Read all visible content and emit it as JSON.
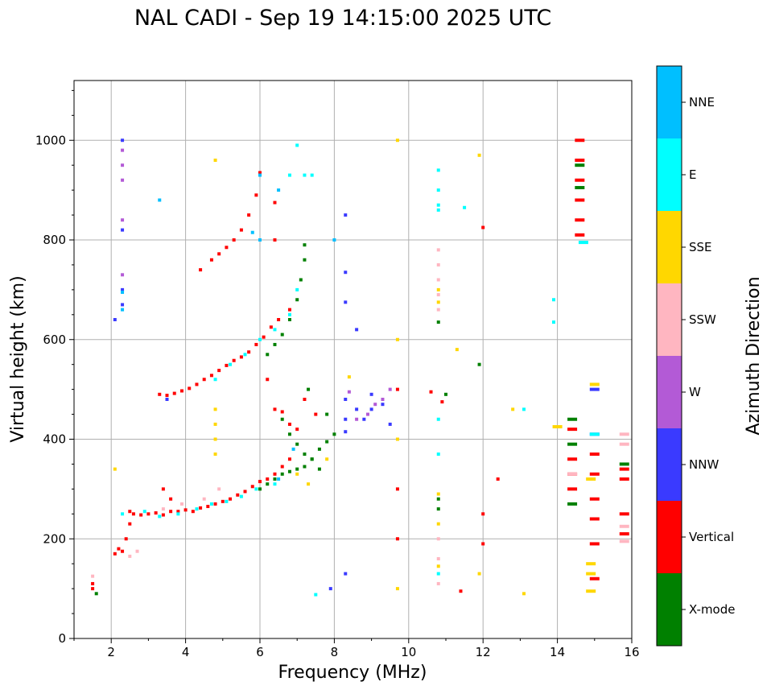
{
  "chart_data": {
    "type": "scatter",
    "title": "NAL CADI - Sep 19 14:15:00 2025 UTC",
    "xlabel": "Frequency (MHz)",
    "ylabel": "Virtual height (km)",
    "xlim": [
      1,
      16
    ],
    "ylim": [
      0,
      1120
    ],
    "xticks": [
      2,
      4,
      6,
      8,
      10,
      12,
      14,
      16
    ],
    "yticks": [
      0,
      200,
      400,
      600,
      800,
      1000
    ],
    "grid": true,
    "colorbar": {
      "title": "Azimuth Direction",
      "categories": [
        {
          "name": "X-mode",
          "color": "#008000"
        },
        {
          "name": "Vertical",
          "color": "#ff0000"
        },
        {
          "name": "NNW",
          "color": "#3a3aff"
        },
        {
          "name": "W",
          "color": "#b35ad6"
        },
        {
          "name": "SSW",
          "color": "#ffb6c1"
        },
        {
          "name": "SSE",
          "color": "#ffd700"
        },
        {
          "name": "E",
          "color": "#00ffff"
        },
        {
          "name": "NNE",
          "color": "#00bfff"
        }
      ]
    },
    "series": [
      {
        "name": "Vertical",
        "points": [
          [
            1.5,
            110
          ],
          [
            1.5,
            100
          ],
          [
            2.1,
            170
          ],
          [
            2.2,
            180
          ],
          [
            2.3,
            175
          ],
          [
            2.4,
            200
          ],
          [
            2.5,
            230
          ],
          [
            2.5,
            255
          ],
          [
            2.6,
            250
          ],
          [
            2.8,
            248
          ],
          [
            3.0,
            250
          ],
          [
            3.2,
            252
          ],
          [
            3.4,
            248
          ],
          [
            3.6,
            255
          ],
          [
            3.8,
            255
          ],
          [
            4.0,
            258
          ],
          [
            4.2,
            255
          ],
          [
            4.4,
            262
          ],
          [
            4.6,
            265
          ],
          [
            4.8,
            270
          ],
          [
            5.0,
            275
          ],
          [
            5.2,
            280
          ],
          [
            5.4,
            288
          ],
          [
            5.6,
            295
          ],
          [
            5.8,
            305
          ],
          [
            6.0,
            315
          ],
          [
            6.2,
            320
          ],
          [
            6.4,
            330
          ],
          [
            6.6,
            345
          ],
          [
            6.8,
            360
          ],
          [
            3.3,
            490
          ],
          [
            3.5,
            488
          ],
          [
            3.7,
            492
          ],
          [
            3.9,
            497
          ],
          [
            4.1,
            502
          ],
          [
            4.3,
            510
          ],
          [
            4.5,
            520
          ],
          [
            4.7,
            528
          ],
          [
            4.9,
            538
          ],
          [
            5.1,
            548
          ],
          [
            5.3,
            558
          ],
          [
            5.5,
            565
          ],
          [
            5.7,
            575
          ],
          [
            5.9,
            590
          ],
          [
            6.1,
            605
          ],
          [
            6.3,
            625
          ],
          [
            6.5,
            640
          ],
          [
            6.8,
            660
          ],
          [
            6.4,
            800
          ],
          [
            6.4,
            460
          ],
          [
            4.4,
            740
          ],
          [
            4.7,
            760
          ],
          [
            4.9,
            772
          ],
          [
            5.1,
            785
          ],
          [
            5.3,
            800
          ],
          [
            5.5,
            820
          ],
          [
            5.7,
            850
          ],
          [
            5.9,
            890
          ],
          [
            6.0,
            935
          ],
          [
            6.4,
            875
          ],
          [
            3.4,
            300
          ],
          [
            3.6,
            280
          ],
          [
            6.2,
            520
          ],
          [
            6.6,
            455
          ],
          [
            6.8,
            430
          ],
          [
            7.0,
            420
          ],
          [
            7.2,
            480
          ],
          [
            7.5,
            450
          ],
          [
            12.0,
            250
          ],
          [
            12.0,
            190
          ],
          [
            12.4,
            320
          ],
          [
            12.0,
            825
          ],
          [
            11.4,
            95
          ],
          [
            10.6,
            495
          ],
          [
            10.9,
            475
          ],
          [
            14.6,
            1000
          ],
          [
            14.6,
            960
          ],
          [
            14.6,
            920
          ],
          [
            14.6,
            880
          ],
          [
            14.6,
            840
          ],
          [
            14.6,
            810
          ],
          [
            14.4,
            420
          ],
          [
            14.4,
            360
          ],
          [
            14.4,
            330
          ],
          [
            14.4,
            300
          ],
          [
            15.0,
            370
          ],
          [
            15.0,
            330
          ],
          [
            15.0,
            280
          ],
          [
            15.0,
            240
          ],
          [
            15.0,
            190
          ],
          [
            15.0,
            120
          ],
          [
            15.8,
            340
          ],
          [
            15.8,
            320
          ],
          [
            15.8,
            250
          ],
          [
            15.8,
            210
          ],
          [
            9.7,
            500
          ],
          [
            9.7,
            300
          ],
          [
            9.7,
            200
          ]
        ]
      },
      {
        "name": "X-mode",
        "points": [
          [
            1.6,
            90
          ],
          [
            6.0,
            300
          ],
          [
            6.2,
            310
          ],
          [
            6.4,
            320
          ],
          [
            6.6,
            330
          ],
          [
            6.8,
            335
          ],
          [
            7.0,
            340
          ],
          [
            7.2,
            345
          ],
          [
            7.4,
            360
          ],
          [
            7.6,
            380
          ],
          [
            7.8,
            395
          ],
          [
            6.2,
            570
          ],
          [
            6.4,
            590
          ],
          [
            6.6,
            610
          ],
          [
            6.8,
            640
          ],
          [
            7.0,
            680
          ],
          [
            7.1,
            720
          ],
          [
            7.2,
            760
          ],
          [
            7.2,
            790
          ],
          [
            6.6,
            440
          ],
          [
            6.8,
            410
          ],
          [
            7.0,
            390
          ],
          [
            7.2,
            370
          ],
          [
            7.4,
            360
          ],
          [
            7.6,
            340
          ],
          [
            7.8,
            450
          ],
          [
            8.0,
            410
          ],
          [
            10.8,
            635
          ],
          [
            10.8,
            280
          ],
          [
            10.8,
            260
          ],
          [
            11.0,
            490
          ],
          [
            11.9,
            550
          ],
          [
            14.4,
            440
          ],
          [
            14.4,
            390
          ],
          [
            14.4,
            270
          ],
          [
            14.6,
            950
          ],
          [
            14.6,
            905
          ],
          [
            15.8,
            350
          ],
          [
            7.3,
            500
          ]
        ]
      },
      {
        "name": "NNW",
        "points": [
          [
            2.3,
            1000
          ],
          [
            2.3,
            820
          ],
          [
            2.3,
            700
          ],
          [
            2.3,
            670
          ],
          [
            2.1,
            640
          ],
          [
            8.3,
            480
          ],
          [
            8.3,
            440
          ],
          [
            8.3,
            415
          ],
          [
            8.6,
            460
          ],
          [
            8.8,
            440
          ],
          [
            9.0,
            490
          ],
          [
            9.0,
            460
          ],
          [
            9.3,
            470
          ],
          [
            9.5,
            430
          ],
          [
            8.3,
            850
          ],
          [
            8.3,
            735
          ],
          [
            8.3,
            675
          ],
          [
            8.6,
            620
          ],
          [
            8.3,
            130
          ],
          [
            7.9,
            100
          ],
          [
            15.0,
            500
          ],
          [
            15.0,
            410
          ],
          [
            3.5,
            480
          ]
        ]
      },
      {
        "name": "W",
        "points": [
          [
            2.3,
            980
          ],
          [
            2.3,
            950
          ],
          [
            2.3,
            920
          ],
          [
            2.3,
            840
          ],
          [
            2.3,
            730
          ],
          [
            8.6,
            440
          ],
          [
            8.9,
            450
          ],
          [
            9.1,
            470
          ],
          [
            9.3,
            480
          ],
          [
            9.5,
            500
          ],
          [
            8.4,
            495
          ]
        ]
      },
      {
        "name": "SSW",
        "points": [
          [
            1.5,
            125
          ],
          [
            2.5,
            165
          ],
          [
            2.7,
            175
          ],
          [
            3.4,
            260
          ],
          [
            3.9,
            270
          ],
          [
            4.5,
            280
          ],
          [
            4.9,
            300
          ],
          [
            10.8,
            780
          ],
          [
            10.8,
            750
          ],
          [
            10.8,
            720
          ],
          [
            10.8,
            690
          ],
          [
            10.8,
            660
          ],
          [
            10.8,
            200
          ],
          [
            10.8,
            160
          ],
          [
            10.8,
            110
          ],
          [
            15.8,
            410
          ],
          [
            15.8,
            390
          ],
          [
            15.8,
            225
          ],
          [
            15.8,
            195
          ],
          [
            14.4,
            330
          ]
        ]
      },
      {
        "name": "SSE",
        "points": [
          [
            4.8,
            460
          ],
          [
            4.8,
            430
          ],
          [
            4.8,
            400
          ],
          [
            4.8,
            370
          ],
          [
            4.8,
            960
          ],
          [
            2.1,
            340
          ],
          [
            7.0,
            330
          ],
          [
            7.3,
            310
          ],
          [
            7.8,
            360
          ],
          [
            8.4,
            525
          ],
          [
            9.7,
            1000
          ],
          [
            9.7,
            600
          ],
          [
            9.7,
            400
          ],
          [
            9.7,
            100
          ],
          [
            10.8,
            700
          ],
          [
            10.8,
            675
          ],
          [
            10.8,
            290
          ],
          [
            10.8,
            230
          ],
          [
            10.8,
            145
          ],
          [
            11.3,
            580
          ],
          [
            11.9,
            130
          ],
          [
            11.9,
            970
          ],
          [
            13.1,
            90
          ],
          [
            14.0,
            425
          ],
          [
            14.9,
            150
          ],
          [
            14.9,
            130
          ],
          [
            14.9,
            95
          ],
          [
            14.9,
            320
          ],
          [
            15.0,
            510
          ],
          [
            12.8,
            460
          ]
        ]
      },
      {
        "name": "E",
        "points": [
          [
            2.3,
            250
          ],
          [
            2.9,
            255
          ],
          [
            3.3,
            245
          ],
          [
            3.8,
            250
          ],
          [
            4.3,
            260
          ],
          [
            4.7,
            270
          ],
          [
            5.1,
            275
          ],
          [
            5.5,
            285
          ],
          [
            5.9,
            300
          ],
          [
            6.4,
            310
          ],
          [
            4.8,
            520
          ],
          [
            5.2,
            550
          ],
          [
            5.6,
            570
          ],
          [
            6.0,
            600
          ],
          [
            6.4,
            620
          ],
          [
            6.8,
            650
          ],
          [
            7.0,
            700
          ],
          [
            6.8,
            930
          ],
          [
            7.2,
            930
          ],
          [
            7.4,
            930
          ],
          [
            10.8,
            940
          ],
          [
            10.8,
            900
          ],
          [
            10.8,
            870
          ],
          [
            10.8,
            860
          ],
          [
            10.8,
            440
          ],
          [
            10.8,
            370
          ],
          [
            10.8,
            130
          ],
          [
            11.5,
            865
          ],
          [
            13.1,
            460
          ],
          [
            13.9,
            680
          ],
          [
            13.9,
            635
          ],
          [
            15.0,
            410
          ],
          [
            14.7,
            795
          ],
          [
            7.0,
            990
          ],
          [
            7.5,
            88
          ]
        ]
      },
      {
        "name": "NNE",
        "points": [
          [
            2.3,
            695
          ],
          [
            2.3,
            660
          ],
          [
            3.3,
            880
          ],
          [
            5.8,
            815
          ],
          [
            6.0,
            930
          ],
          [
            6.5,
            900
          ],
          [
            6.0,
            800
          ],
          [
            8.0,
            800
          ],
          [
            6.5,
            320
          ],
          [
            6.9,
            380
          ]
        ]
      }
    ]
  }
}
